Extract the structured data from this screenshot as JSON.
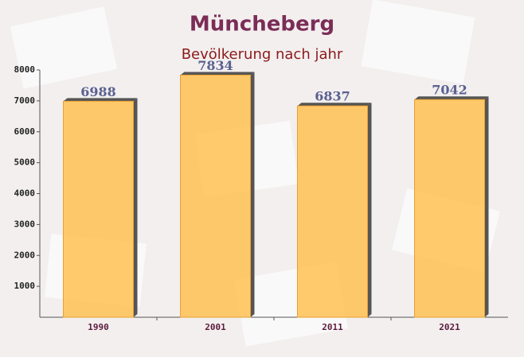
{
  "chart_data": {
    "type": "bar",
    "title": "Müncheberg",
    "subtitle": "Bevölkerung nach jahr",
    "categories": [
      "1990",
      "2001",
      "2011",
      "2021"
    ],
    "values": [
      6988,
      7834,
      6837,
      7042
    ],
    "color": "#ffc04d",
    "ylim": [
      0,
      8000
    ],
    "yticks": [
      1000,
      2000,
      3000,
      4000,
      5000,
      6000,
      7000,
      8000
    ],
    "grid": false
  }
}
